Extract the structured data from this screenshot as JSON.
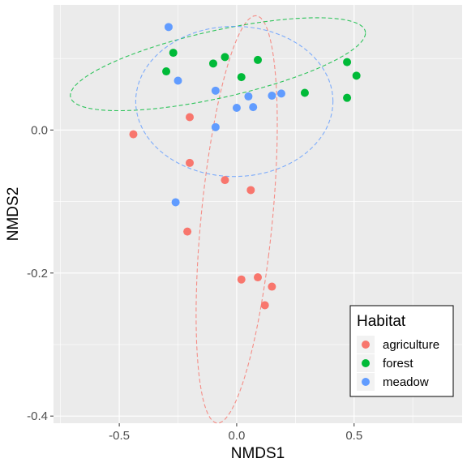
{
  "chart_data": {
    "type": "scatter",
    "xlabel": "NMDS1",
    "ylabel": "NMDS2",
    "xlim": [
      -0.78,
      0.96
    ],
    "ylim": [
      -0.41,
      0.175
    ],
    "xticks": [
      -0.5,
      0.0,
      0.5
    ],
    "xtick_labels": [
      "-0.5",
      "0.0",
      "0.5"
    ],
    "yticks": [
      -0.4,
      -0.2,
      0.0
    ],
    "ytick_labels": [
      "-0.4",
      "-0.2",
      "0.0"
    ],
    "grid": true,
    "legend": {
      "title": "Habitat",
      "position": "bottom-right",
      "entries": [
        "agriculture",
        "forest",
        "meadow"
      ]
    },
    "series": [
      {
        "name": "agriculture",
        "color": "#F8766D",
        "points": [
          {
            "x": -0.44,
            "y": -0.006
          },
          {
            "x": -0.2,
            "y": 0.018
          },
          {
            "x": -0.2,
            "y": -0.046
          },
          {
            "x": -0.05,
            "y": -0.07
          },
          {
            "x": 0.06,
            "y": -0.084
          },
          {
            "x": -0.21,
            "y": -0.142
          },
          {
            "x": 0.02,
            "y": -0.209
          },
          {
            "x": 0.09,
            "y": -0.206
          },
          {
            "x": 0.15,
            "y": -0.219
          },
          {
            "x": 0.12,
            "y": -0.245
          }
        ],
        "ellipse": {
          "cx": 0.0,
          "cy": -0.125,
          "rx": 0.145,
          "ry": 0.3,
          "angle_deg": -21
        }
      },
      {
        "name": "forest",
        "color": "#00BA38",
        "points": [
          {
            "x": -0.27,
            "y": 0.108
          },
          {
            "x": -0.3,
            "y": 0.082
          },
          {
            "x": -0.1,
            "y": 0.093
          },
          {
            "x": -0.05,
            "y": 0.102
          },
          {
            "x": 0.09,
            "y": 0.098
          },
          {
            "x": 0.02,
            "y": 0.074
          },
          {
            "x": 0.29,
            "y": 0.052
          },
          {
            "x": 0.47,
            "y": 0.095
          },
          {
            "x": 0.51,
            "y": 0.076
          },
          {
            "x": 0.47,
            "y": 0.045
          }
        ],
        "ellipse": {
          "cx": -0.08,
          "cy": 0.092,
          "rx": 0.63,
          "ry": 0.048,
          "angle_deg": 4
        }
      },
      {
        "name": "meadow",
        "color": "#619CFF",
        "points": [
          {
            "x": -0.29,
            "y": 0.144
          },
          {
            "x": -0.25,
            "y": 0.069
          },
          {
            "x": -0.09,
            "y": 0.055
          },
          {
            "x": -0.09,
            "y": 0.004
          },
          {
            "x": 0.0,
            "y": 0.031
          },
          {
            "x": 0.05,
            "y": 0.047
          },
          {
            "x": 0.07,
            "y": 0.032
          },
          {
            "x": 0.15,
            "y": 0.048
          },
          {
            "x": 0.19,
            "y": 0.051
          },
          {
            "x": -0.26,
            "y": -0.101
          }
        ],
        "ellipse": {
          "cx": -0.01,
          "cy": 0.04,
          "rx": 0.42,
          "ry": 0.105,
          "angle_deg": 0
        }
      }
    ]
  }
}
